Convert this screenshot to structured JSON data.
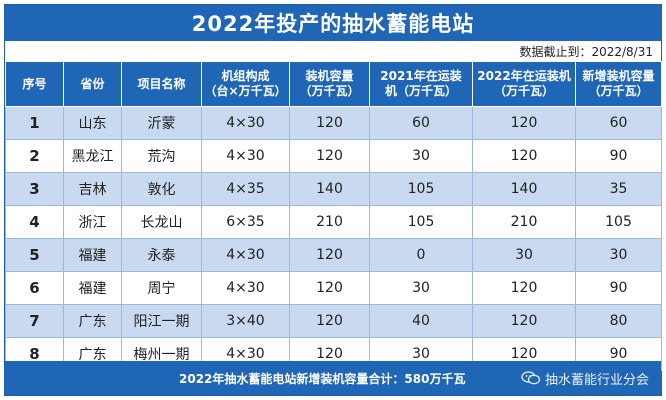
{
  "title": "2022年投产的抽水蓄能电站",
  "date_note": "数据截止到：2022/8/31",
  "table": {
    "headers": [
      "序号",
      "省份",
      "项目名称",
      "机组构成\n（台×万千瓦）",
      "装机容量\n（万千瓦）",
      "2021年在运装\n机（万千瓦）",
      "2022年在运装机\n（万千瓦）",
      "新增装机容量\n（万千瓦）"
    ],
    "rows": [
      [
        "1",
        "山东",
        "沂蒙",
        "4×30",
        "120",
        "60",
        "120",
        "60"
      ],
      [
        "2",
        "黑龙江",
        "荒沟",
        "4×30",
        "120",
        "30",
        "120",
        "90"
      ],
      [
        "3",
        "吉林",
        "敦化",
        "4×35",
        "140",
        "105",
        "140",
        "35"
      ],
      [
        "4",
        "浙江",
        "长龙山",
        "6×35",
        "210",
        "105",
        "210",
        "105"
      ],
      [
        "5",
        "福建",
        "永泰",
        "4×30",
        "120",
        "0",
        "30",
        "30"
      ],
      [
        "6",
        "福建",
        "周宁",
        "4×30",
        "120",
        "30",
        "120",
        "90"
      ],
      [
        "7",
        "广东",
        "阳江一期",
        "3×40",
        "120",
        "40",
        "120",
        "80"
      ],
      [
        "8",
        "广东",
        "梅州一期",
        "4×30",
        "120",
        "30",
        "120",
        "90"
      ]
    ]
  },
  "footer": {
    "summary": "2022年抽水蓄能电站新增装机容量合计：580万千瓦",
    "watermark": "抽水蓄能行业分会",
    "watermark_icon": "wechat-icon"
  },
  "colors": {
    "header_blue": "#1f66b6",
    "band_blue": "#c9daf0"
  }
}
